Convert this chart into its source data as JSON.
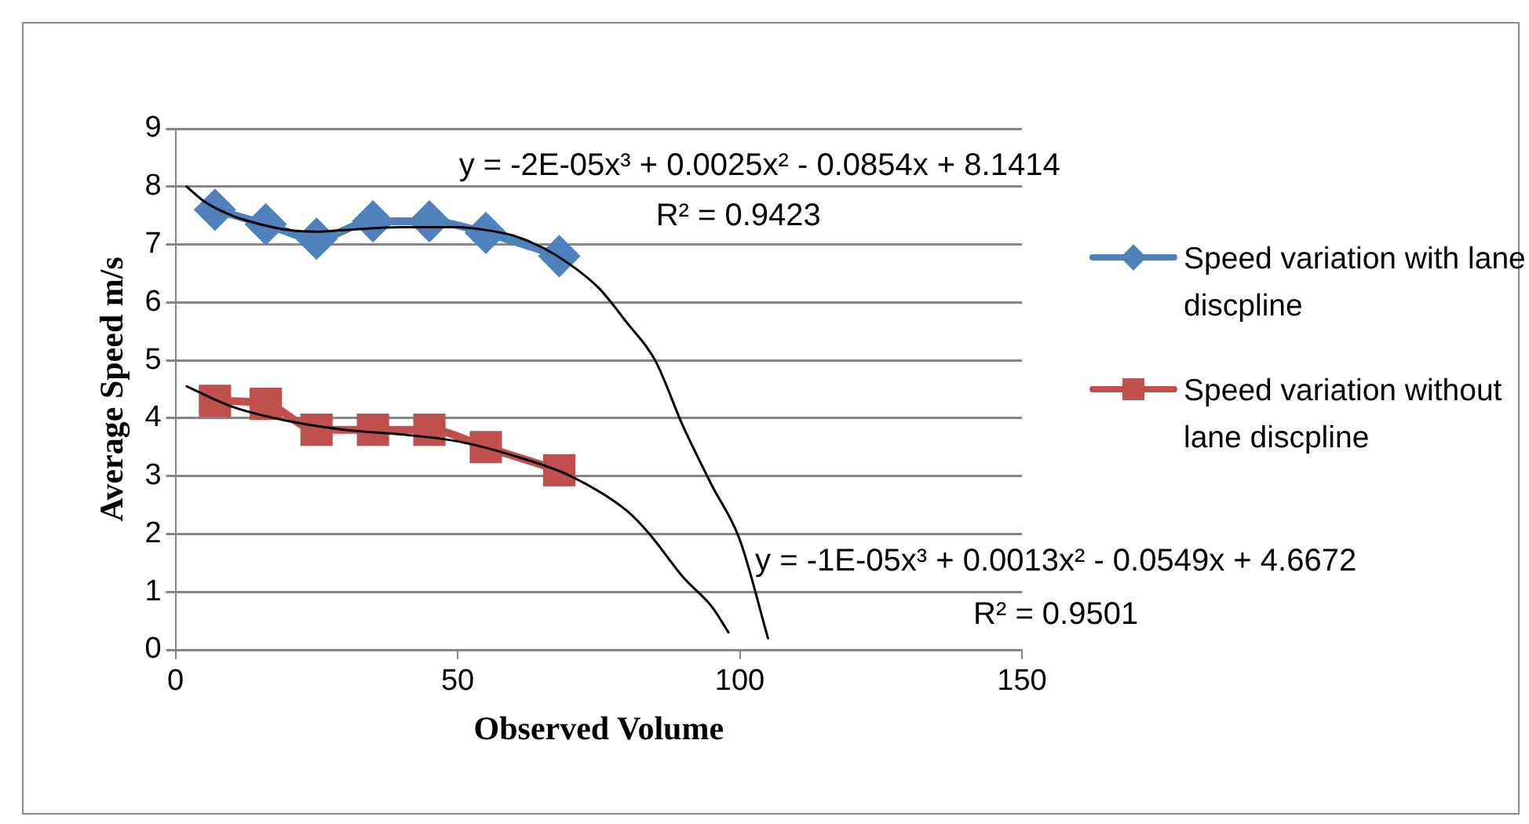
{
  "chart_data": {
    "type": "line",
    "xlabel": "Observed Volume",
    "ylabel": "Average Speed m/s",
    "xlim": [
      0,
      150
    ],
    "xticks": [
      0,
      50,
      100,
      150
    ],
    "ylim": [
      0,
      9
    ],
    "yticks": [
      0,
      1,
      2,
      3,
      4,
      5,
      6,
      7,
      8,
      9
    ],
    "grid": "y",
    "legend": "right",
    "series": [
      {
        "name": "Speed variation with lane discpline",
        "color": "#4f81bd",
        "marker": "diamond",
        "x": [
          7,
          16,
          25,
          35,
          45,
          55,
          68
        ],
        "values": [
          7.6,
          7.35,
          7.1,
          7.4,
          7.4,
          7.2,
          6.8
        ]
      },
      {
        "name": "Speed variation without lane discpline",
        "color": "#c0504d",
        "marker": "square",
        "x": [
          7,
          16,
          25,
          35,
          45,
          55,
          68
        ],
        "values": [
          4.3,
          4.25,
          3.8,
          3.8,
          3.8,
          3.5,
          3.1
        ]
      },
      {
        "color": "#000000",
        "marker": "none",
        "x": [
          2,
          5,
          10,
          15,
          20,
          25,
          30,
          40,
          50,
          55,
          60,
          65,
          70,
          75,
          80,
          85,
          90,
          95,
          100,
          105
        ],
        "values": [
          8.0,
          7.75,
          7.5,
          7.35,
          7.25,
          7.22,
          7.25,
          7.3,
          7.3,
          7.25,
          7.15,
          6.95,
          6.65,
          6.25,
          5.65,
          5.0,
          3.85,
          2.85,
          1.9,
          0.2
        ]
      },
      {
        "color": "#000000",
        "marker": "none",
        "x": [
          2,
          10,
          20,
          30,
          40,
          50,
          60,
          70,
          80,
          84,
          90,
          95,
          98
        ],
        "values": [
          4.55,
          4.2,
          3.95,
          3.8,
          3.72,
          3.6,
          3.35,
          3.0,
          2.4,
          2.0,
          1.25,
          0.75,
          0.3
        ]
      }
    ],
    "annotations": [
      "y = -2E-05x³ + 0.0025x² - 0.0854x + 8.1414",
      "R² = 0.9423",
      "y = -1E-05x³ + 0.0013x² - 0.0549x + 4.6672",
      "R² = 0.9501"
    ]
  }
}
